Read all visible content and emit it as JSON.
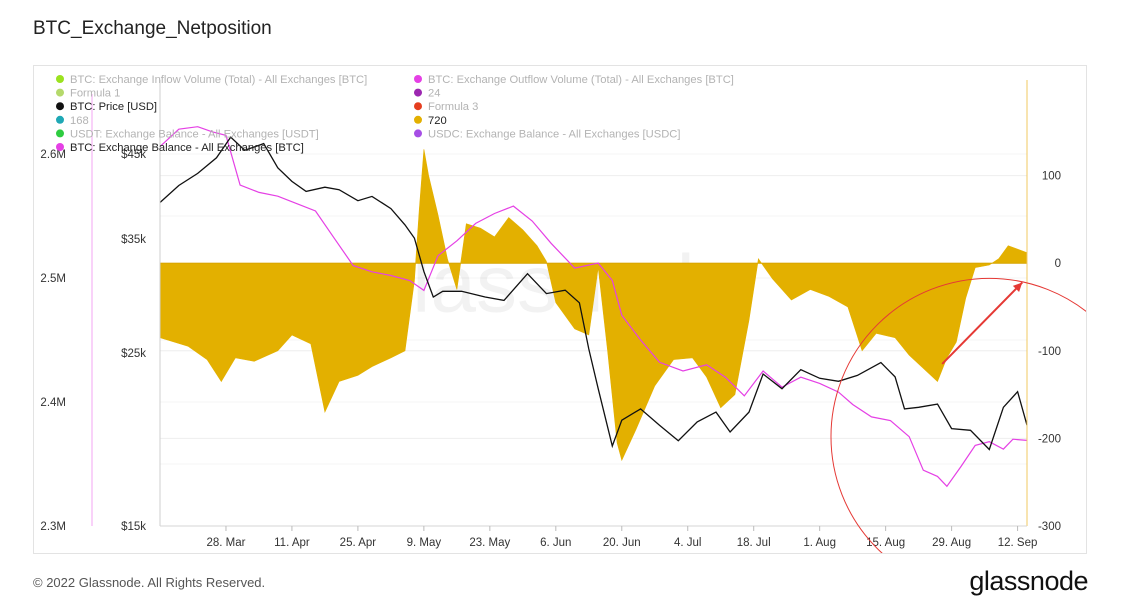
{
  "page": {
    "title": "BTC_Exchange_Netposition",
    "copyright": "© 2022 Glassnode. All Rights Reserved.",
    "brand": "glassnode",
    "watermark": "glassnode"
  },
  "colors": {
    "balance": "#e540e5",
    "price": "#111111",
    "netposition": "#e3b000",
    "annotation": "#e53935",
    "grid": "#eeeeee"
  },
  "legend": [
    {
      "label": "BTC: Exchange Inflow Volume (Total) - All Exchanges [BTC]",
      "color": "#9be21f"
    },
    {
      "label": "BTC: Exchange Outflow Volume (Total) - All Exchanges [BTC]",
      "color": "#e540e5"
    },
    {
      "label": "Formula 1",
      "color": "#b5d96b"
    },
    {
      "label": "24",
      "color": "#9c27b0"
    },
    {
      "label": "BTC: Price [USD]",
      "color": "#111111"
    },
    {
      "label": "Formula 3",
      "color": "#e53e1f"
    },
    {
      "label": "168",
      "color": "#1fa8b5"
    },
    {
      "label": "720",
      "color": "#e3b000"
    },
    {
      "label": "USDT: Exchange Balance - All Exchanges [USDT]",
      "color": "#2ecc40"
    },
    {
      "label": "USDC: Exchange Balance - All Exchanges [USDC]",
      "color": "#a64ee5"
    },
    {
      "label": "BTC: Exchange Balance - All Exchanges [BTC]",
      "color": "#e540e5"
    }
  ],
  "chart_data": {
    "type": "area",
    "xlabel": "",
    "ylabel": "",
    "x_ticks": [
      "28. Mar",
      "11. Apr",
      "25. Apr",
      "9. May",
      "23. May",
      "6. Jun",
      "20. Jun",
      "4. Jul",
      "18. Jul",
      "1. Aug",
      "15. Aug",
      "29. Aug",
      "12. Sep"
    ],
    "x_range": [
      "2022-03-14",
      "2022-09-14"
    ],
    "axes": {
      "balance": {
        "ticks": [
          "2.3M",
          "2.4M",
          "2.5M",
          "2.6M"
        ],
        "range": [
          2300000,
          2600000
        ]
      },
      "price": {
        "ticks": [
          "$15k",
          "$25k",
          "$35k",
          "$45k"
        ],
        "scale": "log"
      },
      "netposition": {
        "ticks": [
          "100",
          "0",
          "-100",
          "-200",
          "-300"
        ],
        "range": [
          -300,
          200
        ]
      }
    },
    "grid": true,
    "series": [
      {
        "name": "720",
        "axis": "netposition",
        "points": [
          [
            "2022-03-14",
            -85
          ],
          [
            "2022-03-20",
            -95
          ],
          [
            "2022-03-24",
            -110
          ],
          [
            "2022-03-27",
            -135
          ],
          [
            "2022-03-30",
            -108
          ],
          [
            "2022-04-03",
            -112
          ],
          [
            "2022-04-08",
            -100
          ],
          [
            "2022-04-11",
            -82
          ],
          [
            "2022-04-15",
            -92
          ],
          [
            "2022-04-18",
            -170
          ],
          [
            "2022-04-21",
            -135
          ],
          [
            "2022-04-25",
            -128
          ],
          [
            "2022-04-28",
            -118
          ],
          [
            "2022-05-02",
            -108
          ],
          [
            "2022-05-05",
            -100
          ],
          [
            "2022-05-07",
            -20
          ],
          [
            "2022-05-08",
            60
          ],
          [
            "2022-05-09",
            130
          ],
          [
            "2022-05-10",
            100
          ],
          [
            "2022-05-12",
            55
          ],
          [
            "2022-05-14",
            5
          ],
          [
            "2022-05-16",
            -30
          ],
          [
            "2022-05-18",
            45
          ],
          [
            "2022-05-21",
            40
          ],
          [
            "2022-05-24",
            30
          ],
          [
            "2022-05-27",
            52
          ],
          [
            "2022-05-30",
            38
          ],
          [
            "2022-06-02",
            20
          ],
          [
            "2022-06-04",
            2
          ],
          [
            "2022-06-06",
            -45
          ],
          [
            "2022-06-10",
            -75
          ],
          [
            "2022-06-13",
            -82
          ],
          [
            "2022-06-15",
            -5
          ],
          [
            "2022-06-17",
            -100
          ],
          [
            "2022-06-19",
            -205
          ],
          [
            "2022-06-20",
            -225
          ],
          [
            "2022-06-23",
            -190
          ],
          [
            "2022-06-27",
            -140
          ],
          [
            "2022-07-01",
            -110
          ],
          [
            "2022-07-05",
            -108
          ],
          [
            "2022-07-08",
            -130
          ],
          [
            "2022-07-11",
            -165
          ],
          [
            "2022-07-14",
            -150
          ],
          [
            "2022-07-17",
            -65
          ],
          [
            "2022-07-19",
            5
          ],
          [
            "2022-07-22",
            -18
          ],
          [
            "2022-07-26",
            -42
          ],
          [
            "2022-07-30",
            -30
          ],
          [
            "2022-08-03",
            -38
          ],
          [
            "2022-08-07",
            -50
          ],
          [
            "2022-08-10",
            -100
          ],
          [
            "2022-08-13",
            -80
          ],
          [
            "2022-08-17",
            -85
          ],
          [
            "2022-08-20",
            -105
          ],
          [
            "2022-08-23",
            -120
          ],
          [
            "2022-08-26",
            -135
          ],
          [
            "2022-08-28",
            -108
          ],
          [
            "2022-08-30",
            -90
          ],
          [
            "2022-09-01",
            -40
          ],
          [
            "2022-09-03",
            -5
          ],
          [
            "2022-09-06",
            -2
          ],
          [
            "2022-09-08",
            5
          ],
          [
            "2022-09-10",
            20
          ],
          [
            "2022-09-14",
            12
          ]
        ]
      },
      {
        "name": "BTC: Exchange Balance - All Exchanges [BTC]",
        "axis": "balance",
        "points": [
          [
            "2022-03-14",
            2606000
          ],
          [
            "2022-03-18",
            2620000
          ],
          [
            "2022-03-22",
            2622000
          ],
          [
            "2022-03-25",
            2618000
          ],
          [
            "2022-03-28",
            2615000
          ],
          [
            "2022-03-31",
            2575000
          ],
          [
            "2022-04-04",
            2569000
          ],
          [
            "2022-04-08",
            2566000
          ],
          [
            "2022-04-12",
            2560000
          ],
          [
            "2022-04-16",
            2554000
          ],
          [
            "2022-04-20",
            2532000
          ],
          [
            "2022-04-24",
            2510000
          ],
          [
            "2022-04-28",
            2505000
          ],
          [
            "2022-05-02",
            2502000
          ],
          [
            "2022-05-06",
            2498000
          ],
          [
            "2022-05-09",
            2490000
          ],
          [
            "2022-05-12",
            2518000
          ],
          [
            "2022-05-16",
            2530000
          ],
          [
            "2022-05-20",
            2544000
          ],
          [
            "2022-05-24",
            2552000
          ],
          [
            "2022-05-28",
            2558000
          ],
          [
            "2022-06-01",
            2546000
          ],
          [
            "2022-06-05",
            2528000
          ],
          [
            "2022-06-10",
            2508000
          ],
          [
            "2022-06-15",
            2512000
          ],
          [
            "2022-06-18",
            2498000
          ],
          [
            "2022-06-20",
            2470000
          ],
          [
            "2022-06-24",
            2450000
          ],
          [
            "2022-06-28",
            2432000
          ],
          [
            "2022-07-03",
            2425000
          ],
          [
            "2022-07-08",
            2430000
          ],
          [
            "2022-07-12",
            2420000
          ],
          [
            "2022-07-16",
            2405000
          ],
          [
            "2022-07-20",
            2425000
          ],
          [
            "2022-07-24",
            2412000
          ],
          [
            "2022-07-28",
            2420000
          ],
          [
            "2022-08-01",
            2415000
          ],
          [
            "2022-08-05",
            2408000
          ],
          [
            "2022-08-08",
            2398000
          ],
          [
            "2022-08-12",
            2388000
          ],
          [
            "2022-08-16",
            2385000
          ],
          [
            "2022-08-20",
            2372000
          ],
          [
            "2022-08-23",
            2345000
          ],
          [
            "2022-08-26",
            2340000
          ],
          [
            "2022-08-28",
            2332000
          ],
          [
            "2022-08-31",
            2348000
          ],
          [
            "2022-09-03",
            2365000
          ],
          [
            "2022-09-06",
            2368000
          ],
          [
            "2022-09-09",
            2362000
          ],
          [
            "2022-09-11",
            2370000
          ],
          [
            "2022-09-14",
            2369000
          ]
        ]
      },
      {
        "name": "BTC: Price [USD]",
        "axis": "price",
        "points": [
          [
            "2022-03-14",
            39000
          ],
          [
            "2022-03-18",
            41000
          ],
          [
            "2022-03-22",
            42500
          ],
          [
            "2022-03-26",
            44500
          ],
          [
            "2022-03-29",
            47300
          ],
          [
            "2022-04-01",
            45500
          ],
          [
            "2022-04-05",
            46400
          ],
          [
            "2022-04-08",
            43200
          ],
          [
            "2022-04-11",
            41500
          ],
          [
            "2022-04-14",
            40300
          ],
          [
            "2022-04-18",
            40800
          ],
          [
            "2022-04-21",
            40500
          ],
          [
            "2022-04-25",
            39200
          ],
          [
            "2022-04-28",
            39700
          ],
          [
            "2022-05-02",
            38300
          ],
          [
            "2022-05-05",
            36500
          ],
          [
            "2022-05-07",
            35100
          ],
          [
            "2022-05-09",
            31800
          ],
          [
            "2022-05-11",
            29500
          ],
          [
            "2022-05-13",
            30000
          ],
          [
            "2022-05-17",
            30000
          ],
          [
            "2022-05-22",
            29500
          ],
          [
            "2022-05-26",
            29200
          ],
          [
            "2022-05-31",
            31600
          ],
          [
            "2022-06-04",
            29800
          ],
          [
            "2022-06-08",
            30100
          ],
          [
            "2022-06-11",
            29000
          ],
          [
            "2022-06-13",
            25300
          ],
          [
            "2022-06-15",
            22500
          ],
          [
            "2022-06-18",
            19000
          ],
          [
            "2022-06-20",
            20500
          ],
          [
            "2022-06-24",
            21200
          ],
          [
            "2022-06-28",
            20200
          ],
          [
            "2022-07-02",
            19300
          ],
          [
            "2022-07-06",
            20400
          ],
          [
            "2022-07-10",
            21000
          ],
          [
            "2022-07-13",
            19800
          ],
          [
            "2022-07-17",
            21000
          ],
          [
            "2022-07-20",
            23500
          ],
          [
            "2022-07-24",
            22500
          ],
          [
            "2022-07-28",
            23800
          ],
          [
            "2022-08-01",
            23200
          ],
          [
            "2022-08-05",
            23000
          ],
          [
            "2022-08-09",
            23400
          ],
          [
            "2022-08-14",
            24300
          ],
          [
            "2022-08-17",
            23300
          ],
          [
            "2022-08-19",
            21200
          ],
          [
            "2022-08-22",
            21300
          ],
          [
            "2022-08-26",
            21500
          ],
          [
            "2022-08-29",
            20000
          ],
          [
            "2022-09-02",
            19900
          ],
          [
            "2022-09-06",
            18800
          ],
          [
            "2022-09-09",
            21300
          ],
          [
            "2022-09-12",
            22300
          ],
          [
            "2022-09-14",
            20200
          ]
        ]
      }
    ],
    "annotations": [
      {
        "type": "arrow",
        "from": [
          "2022-08-27",
          -115
        ],
        "to": [
          "2022-09-13",
          -22
        ]
      },
      {
        "type": "circle",
        "center": [
          "2022-09-06",
          -198
        ],
        "radius_days": 8
      }
    ]
  }
}
